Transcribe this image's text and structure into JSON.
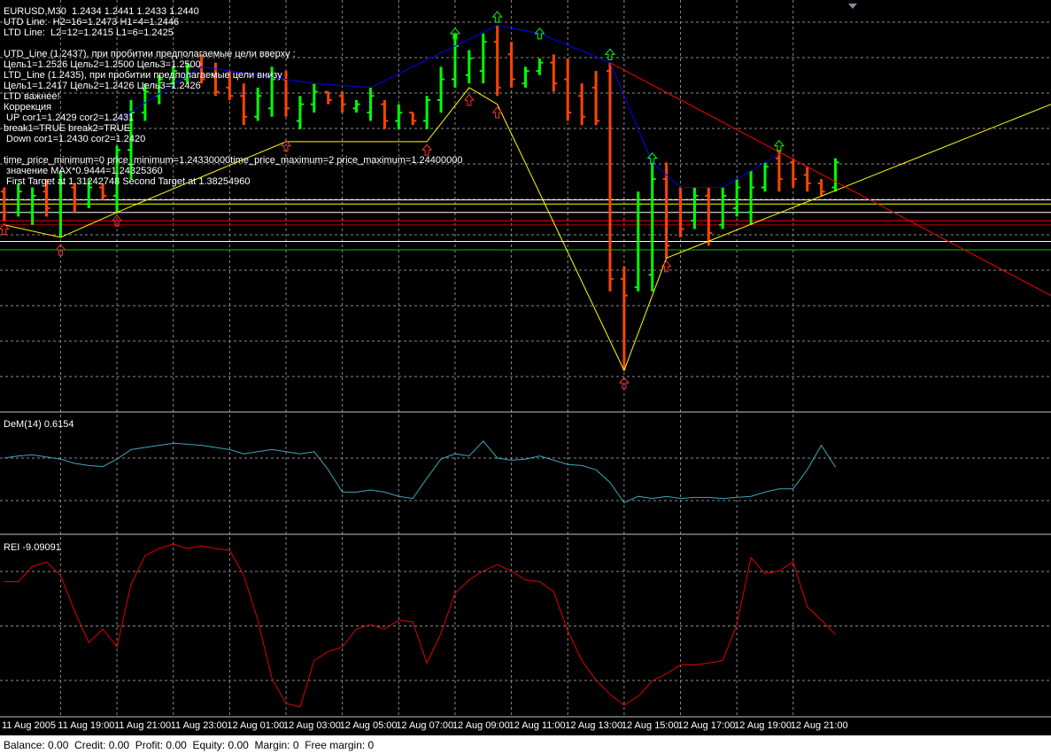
{
  "chart_data": [
    {
      "type": "ohlc",
      "title": "EURUSD,M30  1.2434 1.2441 1.2433 1.2440",
      "annotations": [
        "UTD Line:  H2=16=1.2473 H1=4=1.2446",
        "LTD Line:  L2=12=1.2415 L1=6=1.2425",
        "UTD_Line (1.2437), при пробитии предполагаемые цели вверху :",
        "Цель1=1.2526 Цель2=1.2500 Цель3=1.2500",
        "LTD_Line (1.2435), при пробитии предполагаемые цели внизу",
        "Цель1=1.2417 Цель2=1.2426 Цель3=1.2426",
        "LTD важнее!",
        "Коррекция",
        " UP cor1=1.2429 cor2=1.2431",
        "break1=TRUE break2=TRUE",
        " Down cor1=1.2430 cor2=1.2420",
        "time_price_minimum=0 price_minimum=1.24330000time_price_maximum=2 price_maximum=1.24400000",
        " значение MAX*0.9444=1.24325360",
        " First Target at 1.31242748 Second Target at 1.38254960"
      ],
      "categories": [
        "11 Aug 2005",
        null,
        null,
        null,
        "11 Aug 19:00",
        null,
        null,
        null,
        "11 Aug 21:00",
        null,
        null,
        null,
        "11 Aug 23:00",
        null,
        null,
        null,
        "12 Aug 01:00",
        null,
        null,
        null,
        "12 Aug 03:00",
        null,
        null,
        null,
        "12 Aug 05:00",
        null,
        null,
        null,
        "12 Aug 07:00",
        null,
        null,
        null,
        "12 Aug 09:00",
        null,
        null,
        null,
        "12 Aug 11:00",
        null,
        null,
        null,
        "12 Aug 13:00",
        null,
        null,
        null,
        "12 Aug 15:00",
        null,
        null,
        null,
        "12 Aug 17:00",
        null,
        null,
        null,
        "12 Aug 19:00",
        null,
        null,
        null,
        "12 Aug 21:00",
        null,
        null,
        null
      ],
      "open": [
        1.2433,
        1.2428,
        1.2428,
        1.2433,
        1.2428,
        1.2434,
        1.243,
        1.2434,
        1.2432,
        1.2443,
        1.2452,
        1.2456,
        1.2459,
        1.246,
        1.2463,
        1.2461,
        1.2458,
        1.2456,
        1.2451,
        1.2453,
        1.246,
        1.245,
        1.2454,
        1.2457,
        1.2456,
        1.2453,
        1.2452,
        1.2454,
        1.245,
        1.2452,
        1.245,
        1.2455,
        1.246,
        1.2461,
        1.2462,
        1.2469,
        1.2466,
        1.2459,
        1.2462,
        1.2464,
        1.246,
        1.2456,
        1.2458,
        1.2462,
        1.2412,
        1.241,
        1.2413,
        1.2436,
        1.243,
        1.2426,
        1.2432,
        1.2425,
        1.2429,
        1.2428,
        1.2434,
        1.2441,
        1.244,
        1.2437,
        1.2435,
        1.2434
      ],
      "high": [
        1.2434,
        1.2435,
        1.2434,
        1.2436,
        1.2438,
        1.2435,
        1.2436,
        1.2435,
        1.2444,
        1.2455,
        1.2459,
        1.2461,
        1.2463,
        1.2464,
        1.2466,
        1.2464,
        1.2462,
        1.2459,
        1.2458,
        1.2463,
        1.2462,
        1.2456,
        1.2459,
        1.2457,
        1.2457,
        1.2455,
        1.2458,
        1.2455,
        1.2454,
        1.2452,
        1.2456,
        1.2463,
        1.2471,
        1.2467,
        1.2471,
        1.2473,
        1.2469,
        1.2463,
        1.2465,
        1.2466,
        1.2465,
        1.2459,
        1.2462,
        1.2464,
        1.2415,
        1.2433,
        1.244,
        1.244,
        1.2434,
        1.2434,
        1.2434,
        1.2434,
        1.2436,
        1.2438,
        1.244,
        1.2443,
        1.2441,
        1.2439,
        1.2436,
        1.2441
      ],
      "low": [
        1.2426,
        1.2427,
        1.2425,
        1.2427,
        1.2422,
        1.2428,
        1.2429,
        1.2431,
        1.2428,
        1.2436,
        1.245,
        1.2454,
        1.2458,
        1.2459,
        1.2459,
        1.2456,
        1.2455,
        1.2449,
        1.245,
        1.2451,
        1.2451,
        1.2448,
        1.2452,
        1.2454,
        1.2452,
        1.2452,
        1.245,
        1.2448,
        1.2448,
        1.2449,
        1.2448,
        1.2452,
        1.2458,
        1.2459,
        1.2459,
        1.2456,
        1.2458,
        1.2458,
        1.2461,
        1.2457,
        1.245,
        1.2449,
        1.2449,
        1.2409,
        1.239,
        1.2409,
        1.2409,
        1.2417,
        1.2422,
        1.2424,
        1.242,
        1.2424,
        1.2427,
        1.2425,
        1.2433,
        1.2433,
        1.2434,
        1.2433,
        1.2432,
        1.2433
      ],
      "close": [
        1.2428,
        1.2433,
        1.2432,
        1.2429,
        1.2435,
        1.243,
        1.2434,
        1.2432,
        1.2443,
        1.2452,
        1.2457,
        1.246,
        1.2462,
        1.2463,
        1.246,
        1.2457,
        1.2456,
        1.2451,
        1.2456,
        1.246,
        1.2453,
        1.2454,
        1.2457,
        1.2455,
        1.2454,
        1.2454,
        1.2456,
        1.245,
        1.2452,
        1.245,
        1.2455,
        1.246,
        1.2468,
        1.2465,
        1.2469,
        1.2458,
        1.246,
        1.2462,
        1.2464,
        1.2459,
        1.2452,
        1.2451,
        1.245,
        1.2412,
        1.2408,
        1.243,
        1.2436,
        1.242,
        1.2424,
        1.2432,
        1.2423,
        1.2432,
        1.2434,
        1.2434,
        1.2439,
        1.2436,
        1.2436,
        1.2435,
        1.2433,
        1.244
      ],
      "up_color": "#00ff00",
      "down_color": "#ff4500",
      "ylim": [
        1.238,
        1.2478
      ],
      "xlim": [
        -0.3,
        74.3
      ],
      "overlays": [
        {
          "color": "#0000ff",
          "x": [
            8,
            14,
            22,
            26,
            35,
            38,
            43,
            46,
            48,
            51,
            55
          ],
          "values": [
            1.245,
            1.2463,
            1.2459,
            1.2458,
            1.2473,
            1.2471,
            1.2464,
            1.244,
            1.2434,
            1.2434,
            1.2442
          ]
        },
        {
          "color": "#ffff00",
          "x": [
            0,
            4,
            8,
            20,
            30,
            33,
            35,
            44,
            47,
            74.3
          ],
          "values": [
            1.2425,
            1.2422,
            1.2428,
            1.2445,
            1.2445,
            1.2458,
            1.2454,
            1.239,
            1.2417,
            1.2454
          ]
        },
        {
          "color": "#ff0000",
          "x": [
            43,
            74.3
          ],
          "values": [
            1.2464,
            1.2408
          ]
        }
      ],
      "levels": [
        {
          "value": 1.2431,
          "color": "#ffffff"
        },
        {
          "value": 1.243,
          "color": "#ffff00"
        },
        {
          "value": 1.2428,
          "color": "#ffffff"
        },
        {
          "value": 1.2426,
          "color": "#ff0000"
        },
        {
          "value": 1.2425,
          "color": "#b00000"
        },
        {
          "value": 1.2421,
          "color": "#ffffff"
        },
        {
          "value": 1.2419,
          "color": "#00c000"
        }
      ],
      "high_arrows": {
        "color": "#00ff00",
        "x": [
          32,
          35,
          38,
          43,
          46,
          55
        ],
        "values": [
          1.2471,
          1.2475,
          1.2471,
          1.2466,
          1.2441,
          1.2444
        ]
      },
      "low_arrows": {
        "color": "#ff3030",
        "x": [
          0,
          4,
          8,
          20,
          30,
          33,
          35,
          44,
          47
        ],
        "values": [
          1.2424,
          1.2419,
          1.2426,
          1.2444,
          1.2443,
          1.2455,
          1.2452,
          1.2387,
          1.2415
        ]
      }
    },
    {
      "type": "line",
      "title": "DeM(14) 0.6154",
      "color": "#3fa5b8",
      "ylim": [
        0,
        1
      ],
      "values": [
        0.7,
        0.72,
        0.73,
        0.71,
        0.69,
        0.65,
        0.63,
        0.62,
        0.69,
        0.78,
        0.8,
        0.82,
        0.84,
        0.83,
        0.82,
        0.8,
        0.78,
        0.74,
        0.76,
        0.78,
        0.76,
        0.74,
        0.76,
        0.59,
        0.38,
        0.38,
        0.4,
        0.38,
        0.34,
        0.32,
        0.51,
        0.69,
        0.74,
        0.72,
        0.86,
        0.7,
        0.68,
        0.69,
        0.72,
        0.68,
        0.64,
        0.63,
        0.59,
        0.47,
        0.28,
        0.34,
        0.32,
        0.34,
        0.32,
        0.33,
        0.33,
        0.32,
        0.33,
        0.34,
        0.38,
        0.41,
        0.41,
        0.59,
        0.82,
        0.6154
      ]
    },
    {
      "type": "line",
      "title": "REI -9.09091",
      "color": "#e00000",
      "ylim": [
        -100,
        100
      ],
      "values": [
        50,
        50,
        67,
        72,
        57,
        17,
        -18,
        -3,
        -23,
        47,
        79,
        87,
        92,
        87,
        90,
        87,
        85,
        57,
        7,
        -58,
        -86,
        -90,
        -38,
        -28,
        -23,
        -3,
        2,
        -3,
        7,
        5,
        -41,
        -8,
        37,
        52,
        62,
        69,
        62,
        52,
        50,
        39,
        -5,
        -38,
        -60,
        -76,
        -88,
        -78,
        -61,
        -53,
        -43,
        -43,
        -41,
        -38,
        2,
        77,
        59,
        62,
        72,
        22,
        7,
        -9.09091
      ]
    }
  ],
  "status_bar": "Balance: 0.00  Credit: 0.00  Profit: 0.00  Equity: 0.00  Margin: 0  Free margin: 0"
}
